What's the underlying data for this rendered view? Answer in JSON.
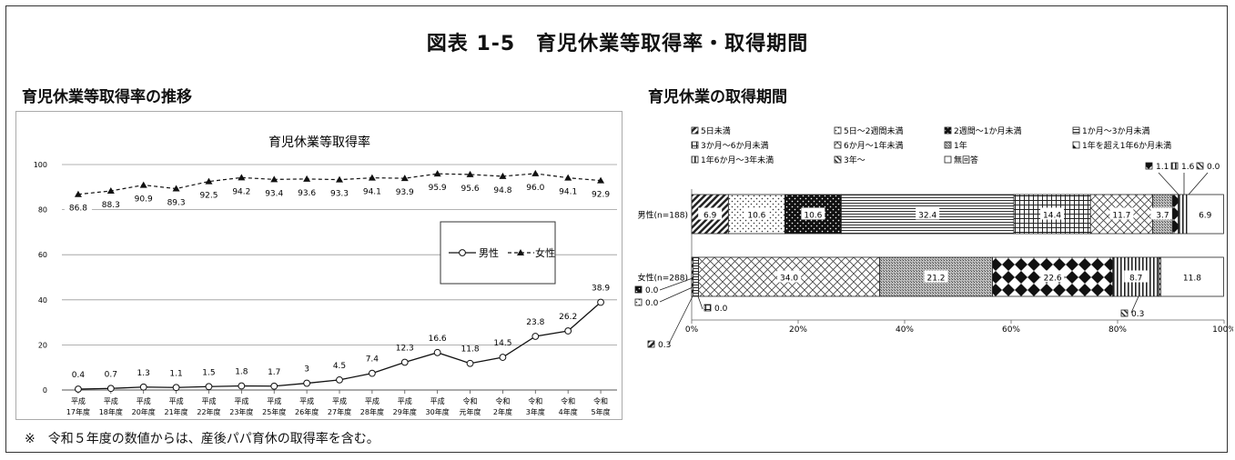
{
  "page": {
    "title": "図表 1-5　育児休業等取得率・取得期間",
    "left_heading": "育児休業等取得率の推移",
    "right_heading": "育児休業の取得期間",
    "footnote": "※　令和５年度の数値からは、産後パパ育休の取得率を含む。"
  },
  "chart_data": [
    {
      "type": "line",
      "title": "育児休業等取得率",
      "categories": [
        [
          "平成",
          "17年度"
        ],
        [
          "平成",
          "18年度"
        ],
        [
          "平成",
          "20年度"
        ],
        [
          "平成",
          "21年度"
        ],
        [
          "平成",
          "22年度"
        ],
        [
          "平成",
          "23年度"
        ],
        [
          "平成",
          "25年度"
        ],
        [
          "平成",
          "26年度"
        ],
        [
          "平成",
          "27年度"
        ],
        [
          "平成",
          "28年度"
        ],
        [
          "平成",
          "29年度"
        ],
        [
          "平成",
          "30年度"
        ],
        [
          "令和",
          "元年度"
        ],
        [
          "令和",
          "2年度"
        ],
        [
          "令和",
          "3年度"
        ],
        [
          "令和",
          "4年度"
        ],
        [
          "令和",
          "5年度"
        ]
      ],
      "series": [
        {
          "name": "男性",
          "values": [
            0.4,
            0.7,
            1.3,
            1.1,
            1.5,
            1.8,
            1.7,
            3,
            4.5,
            7.4,
            12.3,
            16.6,
            11.8,
            14.5,
            23.8,
            26.2,
            38.9
          ],
          "labels": [
            "0.4",
            "0.7",
            "1.3",
            "1.1",
            "1.5",
            "1.8",
            "1.7",
            "3",
            "4.5",
            "7.4",
            "12.3",
            "16.6",
            "11.8",
            "14.5",
            "23.8",
            "26.2",
            "38.9"
          ],
          "style": "solid",
          "marker": "circle"
        },
        {
          "name": "女性",
          "values": [
            86.8,
            88.3,
            90.9,
            89.3,
            92.5,
            94.2,
            93.4,
            93.6,
            93.3,
            94.1,
            93.9,
            95.9,
            95.6,
            94.8,
            96.0,
            94.1,
            92.9
          ],
          "labels": [
            "86.8",
            "88.3",
            "90.9",
            "89.3",
            "92.5",
            "94.2",
            "93.4",
            "93.6",
            "93.3",
            "94.1",
            "93.9",
            "95.9",
            "95.6",
            "94.8",
            "96.0",
            "94.1",
            "92.9"
          ],
          "style": "dashed",
          "marker": "triangle"
        }
      ],
      "ylim": [
        0,
        100
      ],
      "yticks": [
        0,
        20,
        40,
        60,
        80,
        100
      ],
      "grid": true,
      "legend": "right-middle"
    },
    {
      "type": "bar",
      "stacked": "percent",
      "orientation": "horizontal",
      "categories": [
        "男性(n=188)",
        "女性(n=288)"
      ],
      "legend": [
        "5日未満",
        "5日～2週間未満",
        "2週間～1か月未満",
        "1か月～3か月未満",
        "3か月～6か月未満",
        "6か月～1年未満",
        "1年",
        "1年を超え1年6か月未満",
        "1年6か月～3年未満",
        "3年～",
        "無回答"
      ],
      "series": [
        {
          "name": "5日未満",
          "values": [
            6.9,
            0.3
          ]
        },
        {
          "name": "5日～2週間未満",
          "values": [
            10.6,
            0.0
          ]
        },
        {
          "name": "2週間～1か月未満",
          "values": [
            10.6,
            0.0
          ]
        },
        {
          "name": "1か月～3か月未満",
          "values": [
            32.4,
            1.0
          ]
        },
        {
          "name": "3か月～6か月未満",
          "values": [
            14.4,
            0.0
          ]
        },
        {
          "name": "6か月～1年未満",
          "values": [
            11.7,
            34.0
          ]
        },
        {
          "name": "1年",
          "values": [
            3.7,
            21.2
          ]
        },
        {
          "name": "1年を超え1年6か月未満",
          "values": [
            1.1,
            22.6
          ]
        },
        {
          "name": "1年6か月～3年未満",
          "values": [
            1.6,
            8.7
          ]
        },
        {
          "name": "3年～",
          "values": [
            0.0,
            0.3
          ]
        },
        {
          "name": "無回答",
          "values": [
            6.9,
            11.8
          ]
        }
      ],
      "xticks": [
        "0%",
        "20%",
        "40%",
        "60%",
        "80%",
        "100%"
      ],
      "xlim": [
        0,
        100
      ]
    }
  ]
}
